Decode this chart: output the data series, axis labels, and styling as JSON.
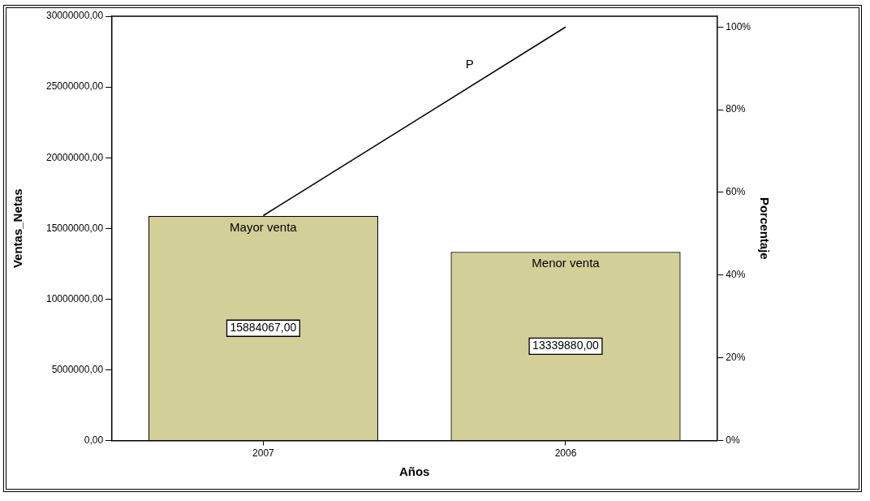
{
  "chart_data": {
    "type": "bar",
    "xlabel": "Años",
    "ylabel": "Ventas_Netas",
    "y2label": "Porcentaje",
    "categories": [
      "2007",
      "2006"
    ],
    "series": [
      {
        "color": "#d3cf98",
        "values": [
          15884067,
          13339880
        ],
        "value_labels": [
          "15884067,00",
          "13339880,00"
        ]
      },
      {
        "type": "line",
        "axis": "y2",
        "color": "#000000",
        "values": [
          54.4,
          100
        ]
      }
    ],
    "ylim": [
      0,
      30000000
    ],
    "yticks": [
      {
        "value": 0,
        "label": "0,00"
      },
      {
        "value": 5000000,
        "label": "5000000,00"
      },
      {
        "value": 10000000,
        "label": "10000000,00"
      },
      {
        "value": 15000000,
        "label": "15000000,00"
      },
      {
        "value": 20000000,
        "label": "20000000,00"
      },
      {
        "value": 25000000,
        "label": "25000000,00"
      },
      {
        "value": 30000000,
        "label": "30000000,00"
      }
    ],
    "y2lim": [
      0,
      102.6
    ],
    "y2ticks": [
      {
        "value": 0,
        "label": "0%"
      },
      {
        "value": 20,
        "label": "20%"
      },
      {
        "value": 40,
        "label": "40%"
      },
      {
        "value": 60,
        "label": "60%"
      },
      {
        "value": 80,
        "label": "80%"
      },
      {
        "value": 100,
        "label": "100%"
      }
    ],
    "annotations": [
      {
        "text": "Mayor venta",
        "x": "2007",
        "y": 15884067
      },
      {
        "text": "Menor venta",
        "x": "2006",
        "y": 13339880
      },
      "P"
    ],
    "grid": false,
    "legend": false,
    "marker": "none"
  }
}
